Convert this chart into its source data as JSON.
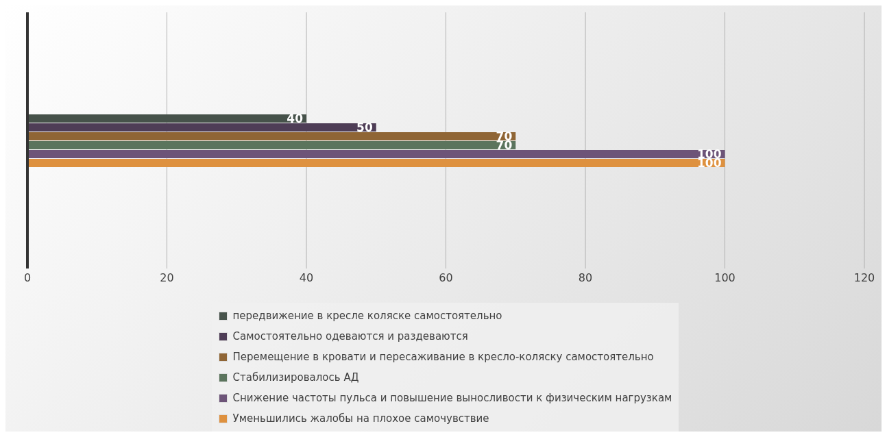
{
  "chart_data": {
    "type": "bar",
    "orientation": "horizontal",
    "categories": [
      null
    ],
    "series": [
      {
        "name": "передвижение в кресле коляске самостоятельно",
        "color": "#46524a",
        "values": [
          40
        ]
      },
      {
        "name": "Самостоятельно одеваются и раздеваются",
        "color": "#4e3d56",
        "values": [
          50
        ]
      },
      {
        "name": "Перемещение в кровати и пересаживание в кресло-коляску самостоятельно",
        "color": "#8f6535",
        "values": [
          70
        ]
      },
      {
        "name": "Стабилизировалось АД",
        "color": "#5b745d",
        "values": [
          70
        ]
      },
      {
        "name": "Снижение частоты пульса и повышение выносливости к физическим нагрузкам",
        "color": "#6d5478",
        "values": [
          100
        ]
      },
      {
        "name": "Уменьшились жалобы на плохое самочувствие",
        "color": "#de913f",
        "values": [
          100
        ]
      }
    ],
    "xlim": [
      0,
      120
    ],
    "xticks": [
      0,
      20,
      40,
      60,
      80,
      100,
      120
    ],
    "grid": "x",
    "legend": "bottom",
    "data_labels": true
  }
}
